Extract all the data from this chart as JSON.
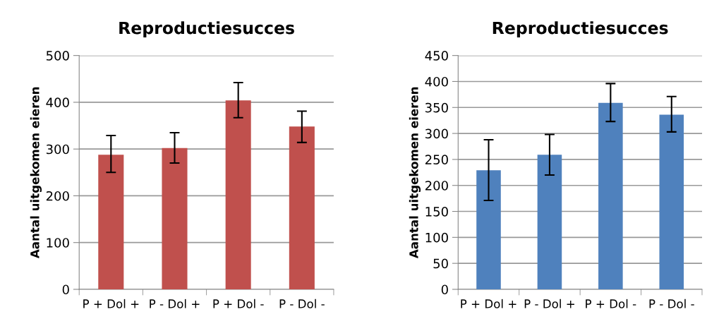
{
  "chart_data": [
    {
      "type": "bar",
      "title": "Reproductiesucces",
      "ylabel": "Aantal uitgekomen eieren",
      "categories": [
        "P + Dol +",
        "P - Dol +",
        "P + Dol -",
        "P - Dol -"
      ],
      "values": [
        288,
        302,
        404,
        348
      ],
      "errors": [
        [
          250,
          329
        ],
        [
          270,
          335
        ],
        [
          367,
          442
        ],
        [
          314,
          381
        ]
      ],
      "color": "#c0504d",
      "ylim": [
        0,
        500
      ],
      "yticks": [
        0,
        100,
        200,
        300,
        400,
        500
      ],
      "grid": "y"
    },
    {
      "type": "bar",
      "title": "Reproductiesucces",
      "ylabel": "Aantal uitgekomen eieren",
      "categories": [
        "P + Dol +",
        "P - Dol +",
        "P + Dol -",
        "P - Dol -"
      ],
      "values": [
        229,
        259,
        359,
        336
      ],
      "errors": [
        [
          171,
          288
        ],
        [
          220,
          298
        ],
        [
          323,
          396
        ],
        [
          303,
          371
        ]
      ],
      "color": "#4f81bd",
      "ylim": [
        0,
        450
      ],
      "yticks": [
        0,
        50,
        100,
        150,
        200,
        250,
        300,
        350,
        400,
        450
      ],
      "grid": "y"
    }
  ]
}
